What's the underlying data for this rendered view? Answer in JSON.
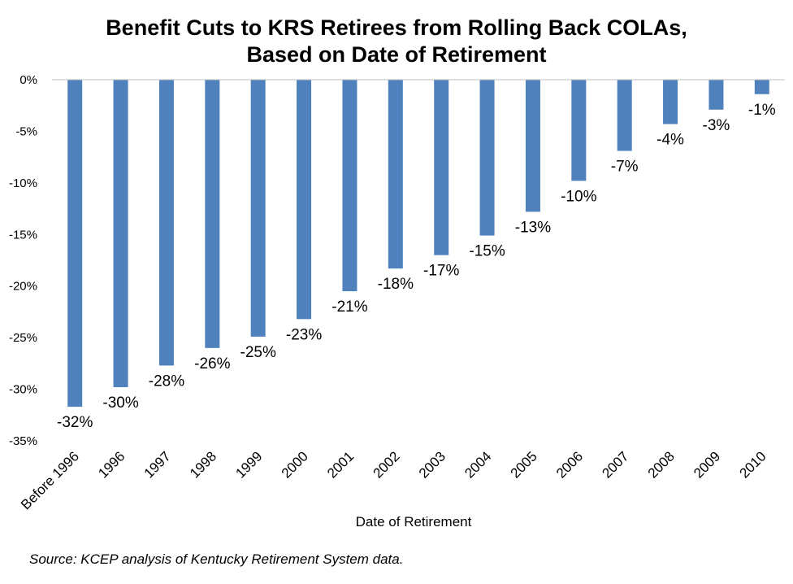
{
  "chart_data": {
    "type": "bar",
    "title_lines": [
      "Benefit Cuts to KRS Retirees from Rolling Back COLAs,",
      "Based on Date of Retirement"
    ],
    "xlabel": "Date of Retirement",
    "ylabel": "",
    "ylim": [
      -35,
      0
    ],
    "yticks": [
      0,
      -5,
      -10,
      -15,
      -20,
      -25,
      -30,
      -35
    ],
    "ytick_labels": [
      "0%",
      "-5%",
      "-10%",
      "-15%",
      "-20%",
      "-25%",
      "-30%",
      "-35%"
    ],
    "categories": [
      "Before 1996",
      "1996",
      "1997",
      "1998",
      "1999",
      "2000",
      "2001",
      "2002",
      "2003",
      "2004",
      "2005",
      "2006",
      "2007",
      "2008",
      "2009",
      "2010"
    ],
    "values": [
      -31.7,
      -29.8,
      -27.7,
      -26.0,
      -24.9,
      -23.2,
      -20.5,
      -18.3,
      -17.0,
      -15.1,
      -12.8,
      -9.8,
      -6.9,
      -4.3,
      -2.9,
      -1.4
    ],
    "data_labels": [
      "-32%",
      "-30%",
      "-28%",
      "-26%",
      "-25%",
      "-23%",
      "-21%",
      "-18%",
      "-17%",
      "-15%",
      "-13%",
      "-10%",
      "-7%",
      "-4%",
      "-3%",
      "-1%"
    ],
    "bar_color": "#4f81bd",
    "grid": false,
    "legend": "none"
  },
  "source_note": "Source: KCEP analysis of Kentucky Retirement System data."
}
